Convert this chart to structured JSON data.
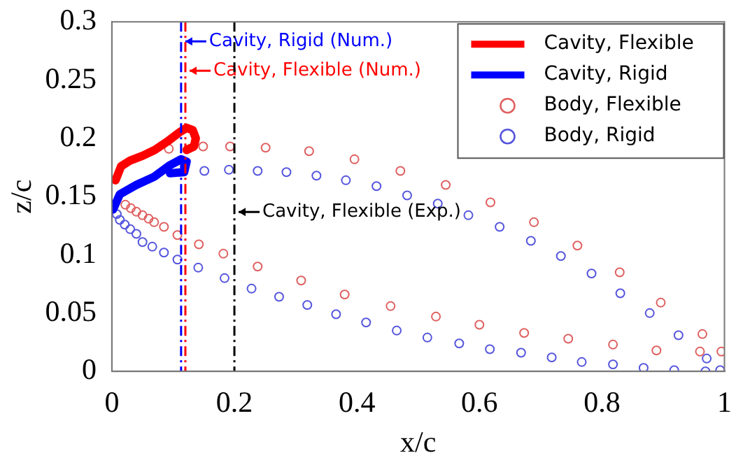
{
  "chart_data": {
    "type": "scatter",
    "xlabel": "x/c",
    "ylabel": "z/c",
    "xlim": [
      0,
      1
    ],
    "ylim": [
      0,
      0.3
    ],
    "xticks": [
      0,
      0.2,
      0.4,
      0.6,
      0.8,
      1
    ],
    "yticks": [
      0,
      0.05,
      0.1,
      0.15,
      0.2,
      0.25,
      0.3
    ],
    "grid": false,
    "legend": "top right",
    "series": [
      {
        "name": "Cavity, Flexible",
        "type": "line",
        "marker": "none",
        "line_style": "solid",
        "color": "#ff0000",
        "x": [
          0.006,
          0.015,
          0.03,
          0.05,
          0.07,
          0.09,
          0.11,
          0.122,
          0.132,
          0.137,
          0.134,
          0.122
        ],
        "values": [
          0.164,
          0.176,
          0.181,
          0.185,
          0.19,
          0.197,
          0.205,
          0.209,
          0.207,
          0.2,
          0.193,
          0.19
        ]
      },
      {
        "name": "Cavity, Rigid",
        "type": "line",
        "marker": "none",
        "line_style": "solid",
        "color": "#0000ff",
        "x": [
          0.002,
          0.013,
          0.04,
          0.069,
          0.095,
          0.113,
          0.122,
          0.118,
          0.095
        ],
        "values": [
          0.139,
          0.152,
          0.16,
          0.167,
          0.177,
          0.182,
          0.18,
          0.171,
          0.17
        ]
      },
      {
        "name": "Body, Flexible",
        "type": "scatter",
        "marker": "circle",
        "color": "#e06060",
        "x": [
          0.995,
          0.964,
          0.896,
          0.829,
          0.76,
          0.689,
          0.618,
          0.545,
          0.471,
          0.396,
          0.322,
          0.251,
          0.193,
          0.149,
          0.093,
          0.022,
          0.031,
          0.04,
          0.05,
          0.06,
          0.069,
          0.085,
          0.107,
          0.142,
          0.182,
          0.238,
          0.309,
          0.38,
          0.455,
          0.529,
          0.6,
          0.673,
          0.745,
          0.818,
          0.889,
          0.96
        ],
        "values": [
          0.017,
          0.032,
          0.059,
          0.085,
          0.108,
          0.128,
          0.145,
          0.16,
          0.172,
          0.182,
          0.189,
          0.192,
          0.193,
          0.193,
          0.191,
          0.143,
          0.14,
          0.137,
          0.134,
          0.131,
          0.128,
          0.124,
          0.117,
          0.109,
          0.101,
          0.09,
          0.078,
          0.066,
          0.056,
          0.047,
          0.04,
          0.033,
          0.028,
          0.023,
          0.018,
          0.017
        ]
      },
      {
        "name": "Body, Rigid",
        "type": "scatter",
        "marker": "circle",
        "color": "#5555dd",
        "x": [
          0.993,
          0.971,
          0.925,
          0.878,
          0.83,
          0.783,
          0.733,
          0.684,
          0.633,
          0.582,
          0.532,
          0.482,
          0.432,
          0.382,
          0.334,
          0.285,
          0.238,
          0.191,
          0.151,
          0.008,
          0.013,
          0.021,
          0.03,
          0.04,
          0.05,
          0.066,
          0.085,
          0.107,
          0.141,
          0.184,
          0.228,
          0.273,
          0.319,
          0.366,
          0.415,
          0.465,
          0.515,
          0.567,
          0.617,
          0.668,
          0.718,
          0.767,
          0.818,
          0.868,
          0.918,
          0.969
        ],
        "values": [
          0.001,
          0.011,
          0.031,
          0.05,
          0.067,
          0.084,
          0.099,
          0.112,
          0.124,
          0.134,
          0.144,
          0.151,
          0.159,
          0.164,
          0.168,
          0.171,
          0.172,
          0.173,
          0.172,
          0.135,
          0.13,
          0.126,
          0.122,
          0.118,
          0.111,
          0.107,
          0.102,
          0.096,
          0.089,
          0.08,
          0.071,
          0.064,
          0.057,
          0.049,
          0.042,
          0.035,
          0.029,
          0.024,
          0.019,
          0.016,
          0.012,
          0.008,
          0.006,
          0.003,
          0.001,
          0
        ]
      }
    ],
    "ref_lines": [
      {
        "axis": "x",
        "value": 0.113,
        "label": "Cavity, Rigid (Num.)",
        "color": "#0000ff",
        "line_style": "dashed"
      },
      {
        "axis": "x",
        "value": 0.12,
        "label": "Cavity, Flexible (Num.)",
        "color": "#ff0000",
        "line_style": "dashed"
      },
      {
        "axis": "x",
        "value": 0.2,
        "label": "Cavity, Flexible (Exp.)",
        "color": "#000000",
        "line_style": "dashed"
      }
    ]
  }
}
